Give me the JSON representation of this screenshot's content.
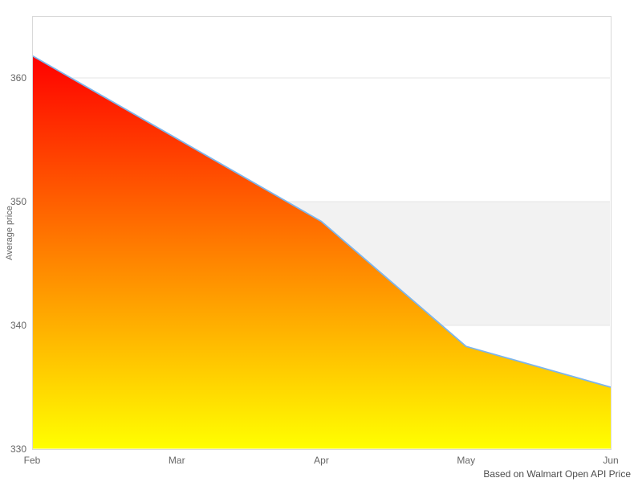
{
  "chart_data": {
    "type": "area",
    "title": "",
    "categories": [
      "Feb",
      "Mar",
      "Apr",
      "May",
      "Jun"
    ],
    "values": [
      361.8,
      355.1,
      348.4,
      338.3,
      335.0
    ],
    "series_name": "Average price",
    "xlabel": "",
    "ylabel": "Average price",
    "ylim": [
      330,
      365
    ],
    "yticks": [
      330,
      340,
      350,
      360
    ],
    "grid": true,
    "legend": "none",
    "line_color": "#7cb5ec",
    "fill_gradient_top": "#ff0000",
    "fill_gradient_bottom": "#ffff00",
    "plot_band": {
      "from": 340,
      "to": 350,
      "color": "#f2f2f2"
    },
    "gridline_color": "#e6e6e6",
    "plot_border_color": "#d9d9d9",
    "credits": "Based on Walmart Open API Price"
  },
  "yaxis": {
    "title": "Average price",
    "ticks": [
      {
        "label": "330",
        "value": 330
      },
      {
        "label": "340",
        "value": 340
      },
      {
        "label": "350",
        "value": 350
      },
      {
        "label": "360",
        "value": 360
      }
    ]
  },
  "xaxis": {
    "ticks": [
      {
        "label": "Feb"
      },
      {
        "label": "Mar"
      },
      {
        "label": "Apr"
      },
      {
        "label": "May"
      },
      {
        "label": "Jun"
      }
    ]
  },
  "credits": {
    "text": "Based on Walmart Open API Price"
  }
}
